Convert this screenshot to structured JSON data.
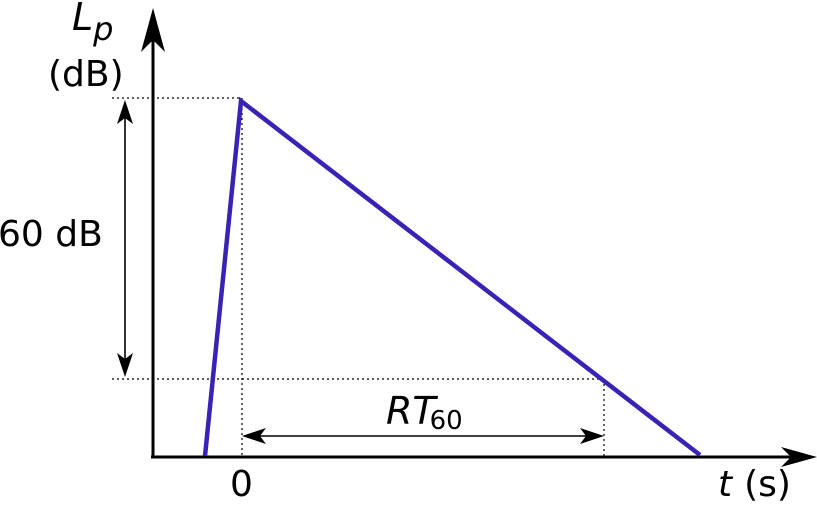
{
  "colors": {
    "curve": "#3a22b5",
    "axes": "#000000",
    "guides": "#000000",
    "background": "#ffffff"
  },
  "y_axis": {
    "symbol": "L",
    "subscript": "p",
    "unit": "(dB)"
  },
  "x_axis": {
    "symbol": "t",
    "unit": "(s)",
    "origin_label": "0"
  },
  "annotations": {
    "level_drop": "60 dB",
    "rt_symbol": "RT",
    "rt_subscript": "60"
  }
}
